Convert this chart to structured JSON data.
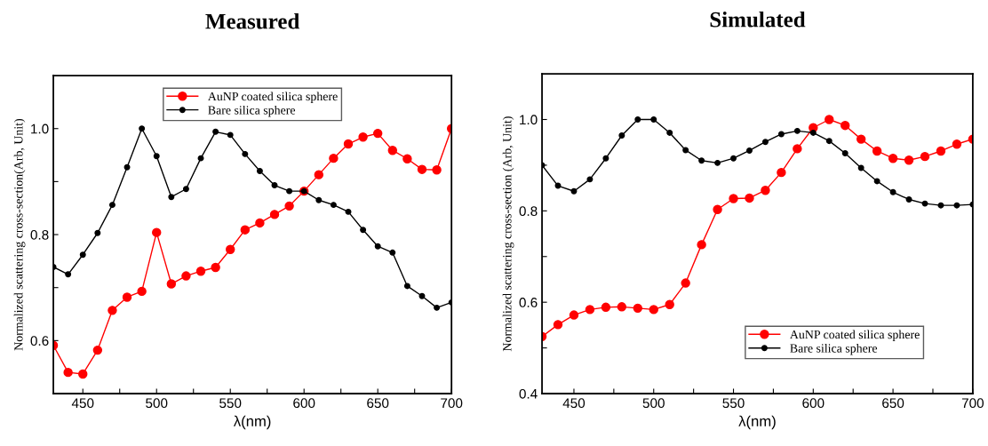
{
  "chart_data": [
    {
      "type": "line",
      "title": "Measured",
      "xlabel": "λ(nm)",
      "ylabel": "Normalized scattering cross-section(Arb, Unit)",
      "x": [
        430,
        440,
        450,
        460,
        470,
        480,
        490,
        500,
        510,
        520,
        530,
        540,
        550,
        560,
        570,
        580,
        590,
        600,
        610,
        620,
        630,
        640,
        650,
        660,
        670,
        680,
        690,
        700
      ],
      "series": [
        {
          "name": "AuNP coated silica sphere",
          "color": "#ff0000",
          "values": [
            0.591,
            0.54,
            0.537,
            0.582,
            0.657,
            0.682,
            0.693,
            0.804,
            0.707,
            0.722,
            0.731,
            0.738,
            0.772,
            0.809,
            0.822,
            0.838,
            0.854,
            0.882,
            0.913,
            0.944,
            0.971,
            0.984,
            0.991,
            0.959,
            0.943,
            0.923,
            0.922,
            1.0
          ]
        },
        {
          "name": "Bare silica sphere",
          "color": "#000000",
          "values": [
            0.739,
            0.725,
            0.762,
            0.803,
            0.856,
            0.927,
            1.0,
            0.948,
            0.871,
            0.886,
            0.944,
            0.994,
            0.988,
            0.952,
            0.92,
            0.893,
            0.882,
            0.882,
            0.865,
            0.856,
            0.843,
            0.809,
            0.778,
            0.766,
            0.703,
            0.684,
            0.662,
            0.672
          ]
        }
      ],
      "xlim": [
        430,
        700
      ],
      "ylim": [
        0.5,
        1.1
      ],
      "xticks": [
        450,
        {
          "value": 475,
          "label": null
        },
        500,
        {
          "value": 525,
          "label": null
        },
        550,
        {
          "value": 575,
          "label": null
        },
        600,
        {
          "value": 625,
          "label": null
        },
        650,
        {
          "value": 675,
          "label": null
        },
        700
      ],
      "yticks": [
        0.6,
        {
          "value": 0.7,
          "label": null
        },
        0.8,
        {
          "value": 0.9,
          "label": null
        },
        {
          "value": 1,
          "label": "1.0"
        }
      ],
      "marker": "circle",
      "line_style": "solid",
      "grid": false,
      "legend": "top"
    },
    {
      "type": "line",
      "title": "Simulated",
      "xlabel": "λ(nm)",
      "ylabel": "Normalized scattering cross-section (Arb, Unit)",
      "x": [
        430,
        440,
        450,
        460,
        470,
        480,
        490,
        500,
        510,
        520,
        530,
        540,
        550,
        560,
        570,
        580,
        590,
        600,
        610,
        620,
        630,
        640,
        650,
        660,
        670,
        680,
        690,
        700
      ],
      "series": [
        {
          "name": "AuNP coated silica sphere",
          "color": "#ff0000",
          "values": [
            0.525,
            0.551,
            0.572,
            0.584,
            0.589,
            0.59,
            0.587,
            0.584,
            0.595,
            0.642,
            0.726,
            0.803,
            0.827,
            0.828,
            0.845,
            0.884,
            0.936,
            0.982,
            1.0,
            0.987,
            0.957,
            0.931,
            0.915,
            0.911,
            0.919,
            0.931,
            0.946,
            0.957
          ]
        },
        {
          "name": "Bare silica sphere",
          "color": "#000000",
          "values": [
            0.9,
            0.855,
            0.843,
            0.869,
            0.915,
            0.965,
            1.0,
            1.0,
            0.971,
            0.933,
            0.91,
            0.905,
            0.915,
            0.932,
            0.951,
            0.968,
            0.975,
            0.971,
            0.953,
            0.926,
            0.894,
            0.865,
            0.841,
            0.825,
            0.816,
            0.812,
            0.812,
            0.814
          ]
        }
      ],
      "xlim": [
        430,
        700
      ],
      "ylim": [
        0.4,
        1.1
      ],
      "xticks": [
        450,
        {
          "value": 475,
          "label": null
        },
        500,
        {
          "value": 525,
          "label": null
        },
        550,
        {
          "value": 575,
          "label": null
        },
        600,
        {
          "value": 625,
          "label": null
        },
        650,
        {
          "value": 675,
          "label": null
        },
        700
      ],
      "yticks": [
        0.4,
        {
          "value": 0.5,
          "label": null
        },
        0.6,
        {
          "value": 0.7,
          "label": null
        },
        0.8,
        {
          "value": 0.9,
          "label": null
        },
        {
          "value": 1,
          "label": "1.0"
        }
      ],
      "marker": "circle",
      "line_style": "solid",
      "grid": false,
      "legend": "bottom right"
    }
  ]
}
